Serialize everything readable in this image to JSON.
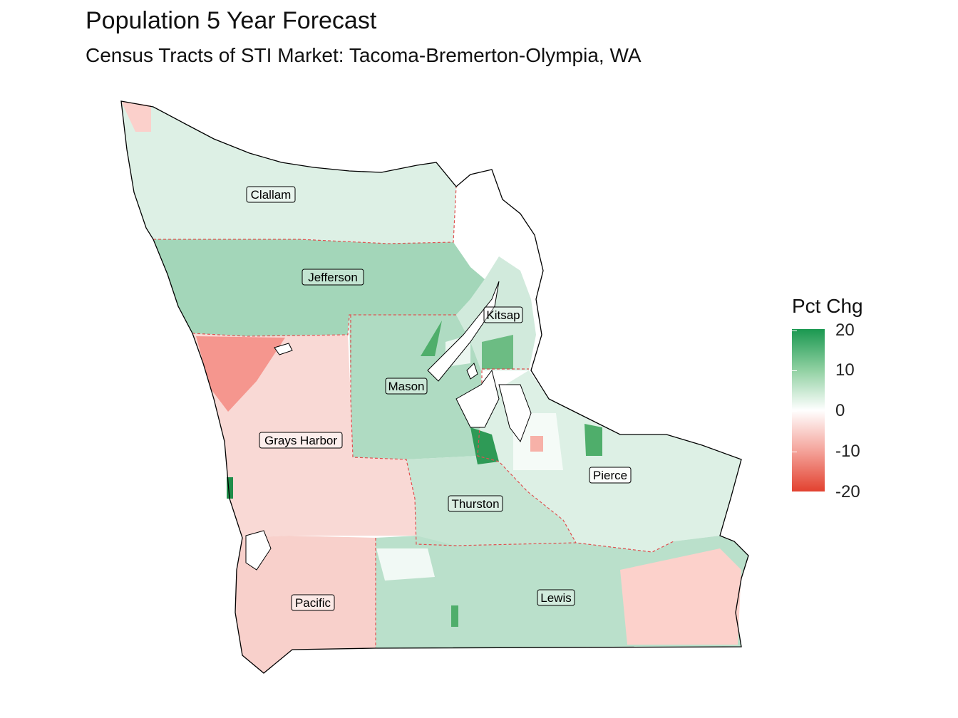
{
  "title": "Population 5 Year Forecast",
  "subtitle": "Census Tracts of STI Market: Tacoma-Bremerton-Olympia, WA",
  "legend": {
    "title": "Pct Chg",
    "ticks": [
      "20",
      "10",
      "0",
      "-10",
      "-20"
    ],
    "colors": {
      "high": "#1a9850",
      "mid": "#ffffff",
      "low": "#e2412f",
      "border": "#e05050"
    }
  },
  "counties": [
    {
      "name": "Clallam",
      "pct_chg": 3
    },
    {
      "name": "Jefferson",
      "pct_chg": 8
    },
    {
      "name": "Kitsap",
      "pct_chg": 4
    },
    {
      "name": "Mason",
      "pct_chg": 7
    },
    {
      "name": "Grays Harbor",
      "pct_chg": -4
    },
    {
      "name": "Thurston",
      "pct_chg": 5
    },
    {
      "name": "Pierce",
      "pct_chg": 3
    },
    {
      "name": "Lewis",
      "pct_chg": 6
    },
    {
      "name": "Pacific",
      "pct_chg": -5
    }
  ]
}
